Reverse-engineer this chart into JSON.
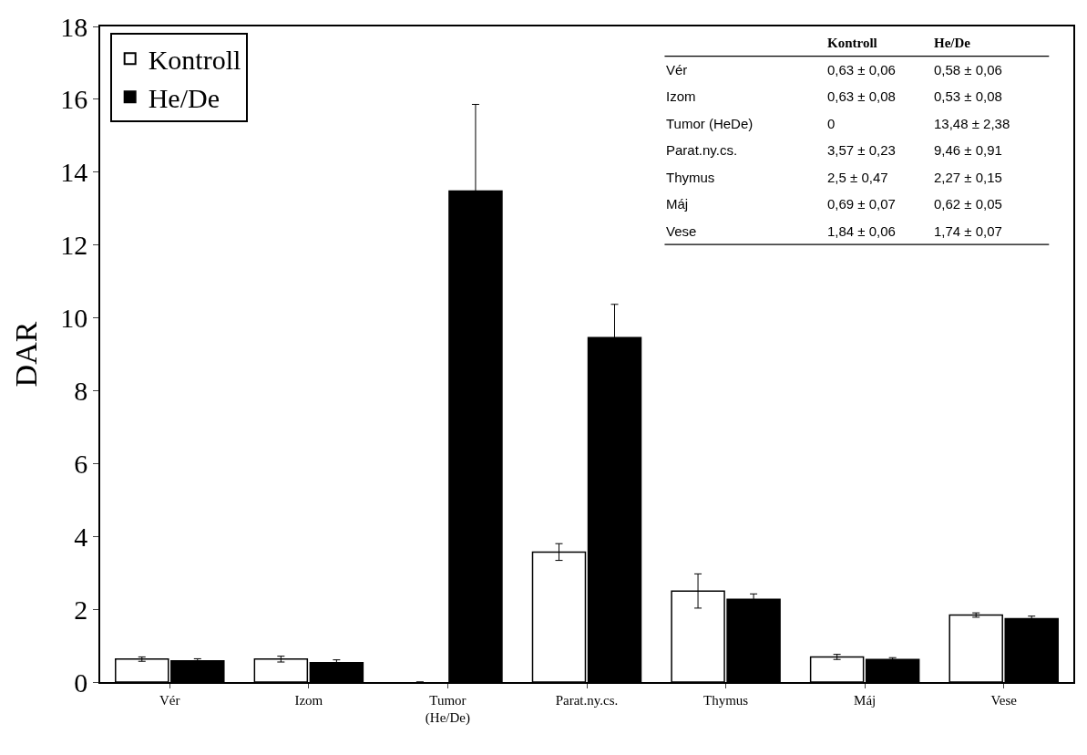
{
  "chart_data": {
    "type": "bar",
    "ylabel": "DAR",
    "categories": [
      "Vér",
      "Izom",
      "Tumor\n(He/De)",
      "Parat.ny.cs.",
      "Thymus",
      "Máj",
      "Vese"
    ],
    "series": [
      {
        "name": "Kontroll",
        "color": "#ffffff",
        "values": [
          0.63,
          0.63,
          0,
          3.57,
          2.5,
          0.69,
          1.84
        ],
        "errors": [
          0.06,
          0.08,
          null,
          0.23,
          0.47,
          0.07,
          0.06
        ]
      },
      {
        "name": "He/De",
        "color": "#000000",
        "values": [
          0.58,
          0.53,
          13.48,
          9.46,
          2.27,
          0.62,
          1.74
        ],
        "errors": [
          0.06,
          0.08,
          2.38,
          0.91,
          0.15,
          0.05,
          0.07
        ]
      }
    ],
    "annotations": [
      "Kontroll",
      "He/De",
      "Vér",
      "0,63 ± 0,06",
      "0,58 ± 0,06",
      "Izom",
      "0,63 ± 0,08",
      "0,53 ± 0,08",
      "Tumor (HeDe)",
      "0",
      "13,48 ± 2,38",
      "Parat.ny.cs.",
      "3,57 ± 0,23",
      "9,46 ± 0,91",
      "Thymus",
      "2,5 ± 0,47",
      "2,27 ± 0,15",
      "Máj",
      "0,69 ± 0,07",
      "0,62 ± 0,05",
      "Vese",
      "1,84 ± 0,06",
      "1,74 ± 0,07"
    ],
    "ylim": [
      0,
      18
    ],
    "yticks": [
      0,
      2,
      4,
      6,
      8,
      10,
      12,
      14,
      16,
      18
    ],
    "legend": "top left"
  }
}
